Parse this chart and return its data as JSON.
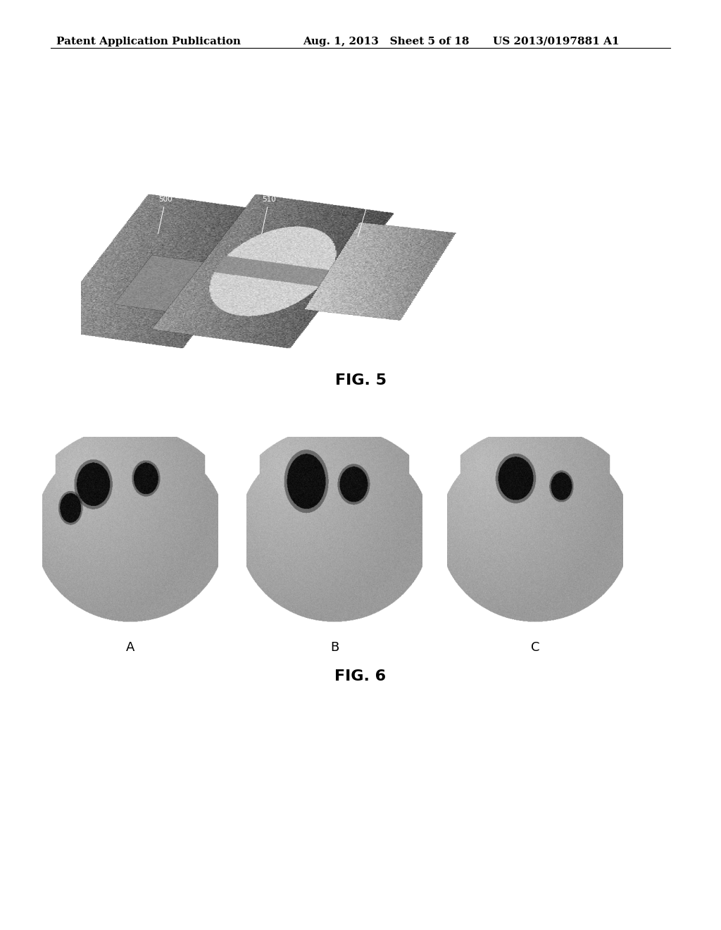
{
  "background_color": "#ffffff",
  "header_left": "Patent Application Publication",
  "header_center": "Aug. 1, 2013   Sheet 5 of 18",
  "header_right": "US 2013/0197881 A1",
  "header_fontsize": 11,
  "fig5_caption": "FIG. 5",
  "fig5_caption_fontsize": 16,
  "fig6_caption": "FIG. 6",
  "fig6_caption_fontsize": 16,
  "fig6_label_fontsize": 13
}
